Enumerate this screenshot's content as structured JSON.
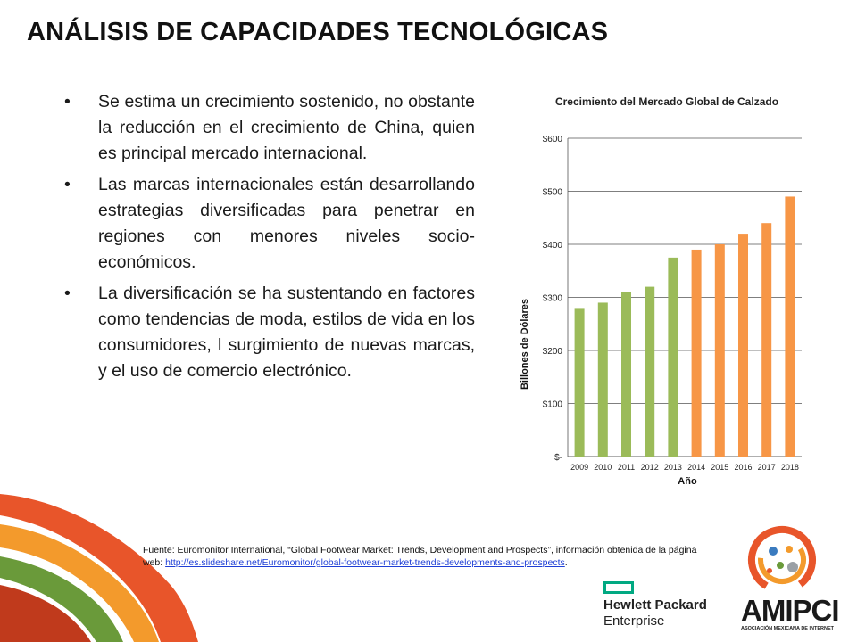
{
  "title": "ANÁLISIS DE CAPACIDADES TECNOLÓGICAS",
  "bullets": [
    "Se estima un crecimiento sostenido, no obstante la reducción en el crecimiento de China, quien es principal mercado internacional.",
    "Las marcas internacionales están desarrollando estrategias diversificadas para penetrar en regiones con menores niveles socio-económicos.",
    "La diversificación se ha sustentando en factores como tendencias de moda, estilos de vida en los consumidores, l surgimiento de nuevas marcas, y el uso de comercio electrónico."
  ],
  "bullet_symbol": "•",
  "source": {
    "text": "Fuente: Euromonitor International, “Global Footwear Market: Trends, Development and Prospects”, información obtenida de la página web: ",
    "link": "http://es.slideshare.net/Euromonitor/global-footwear-market-trends-developments-and-prospects",
    "end": "."
  },
  "logos": {
    "hpe_line1": "Hewlett Packard",
    "hpe_line2": "Enterprise",
    "amipci": "AMIPCI",
    "amipci_sub": "ASOCIACIÓN MEXICANA DE INTERNET"
  },
  "colors": {
    "historical": "#9bbb59",
    "forecast": "#f79646",
    "decor_orange": "#e8552a",
    "decor_green": "#6a9a3a",
    "hpe_green": "#01a982"
  },
  "chart_data": {
    "type": "bar",
    "title": "Crecimiento del Mercado Global de Calzado",
    "xlabel": "Año",
    "ylabel": "Billones de Dólares",
    "categories": [
      "2009",
      "2010",
      "2011",
      "2012",
      "2013",
      "2014",
      "2015",
      "2016",
      "2017",
      "2018"
    ],
    "values": [
      280,
      290,
      310,
      320,
      375,
      390,
      400,
      420,
      440,
      490
    ],
    "bar_colors": [
      "#9bbb59",
      "#9bbb59",
      "#9bbb59",
      "#9bbb59",
      "#9bbb59",
      "#f79646",
      "#f79646",
      "#f79646",
      "#f79646",
      "#f79646"
    ],
    "ylim": [
      0,
      600
    ],
    "yticks": [
      0,
      100,
      200,
      300,
      400,
      500,
      600
    ],
    "ytick_labels": [
      "$-",
      "$100",
      "$200",
      "$300",
      "$400",
      "$500",
      "$600"
    ],
    "grid": true
  }
}
